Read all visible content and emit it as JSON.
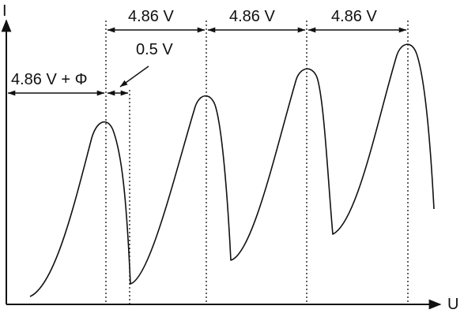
{
  "axes": {
    "y_label": "I",
    "x_label": "U"
  },
  "annotations": {
    "first_interval": "4.86 V + Φ",
    "offset": "0.5 V",
    "spacing_1": "4.86 V",
    "spacing_2": "4.86 V",
    "spacing_3": "4.86 V"
  }
}
